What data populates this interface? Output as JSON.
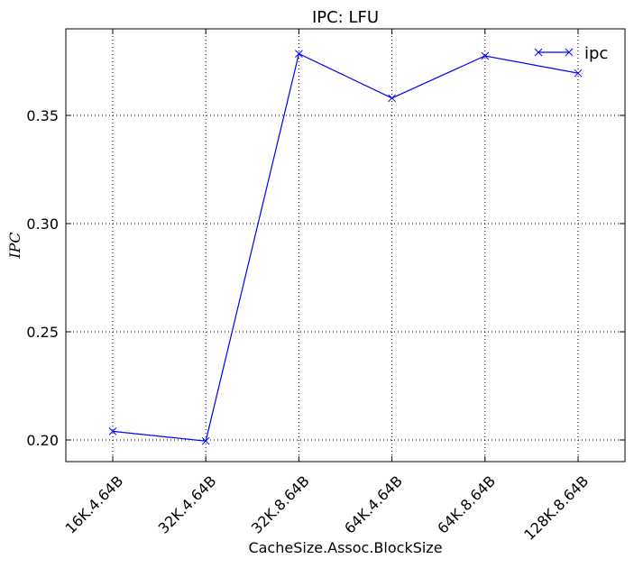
{
  "chart_data": {
    "type": "line",
    "title": "IPC: LFU",
    "xlabel": "CacheSize.Assoc.BlockSize",
    "ylabel": "IPC",
    "categories": [
      "16K.4.64B",
      "32K.4.64B",
      "32K.8.64B",
      "64K.4.64B",
      "64K.8.64B",
      "128K.8.64B"
    ],
    "series": [
      {
        "name": "ipc",
        "values": [
          0.204,
          0.1995,
          0.3785,
          0.358,
          0.3775,
          0.3695
        ],
        "color": "#0000ff",
        "marker": "x"
      }
    ],
    "yticks": [
      0.2,
      0.25,
      0.3,
      0.35
    ],
    "ytick_labels": [
      "0.20",
      "0.25",
      "0.30",
      "0.35"
    ],
    "ylim": [
      0.19,
      0.39
    ],
    "grid": true,
    "grid_style": "dotted",
    "legend_position": "top-right"
  }
}
